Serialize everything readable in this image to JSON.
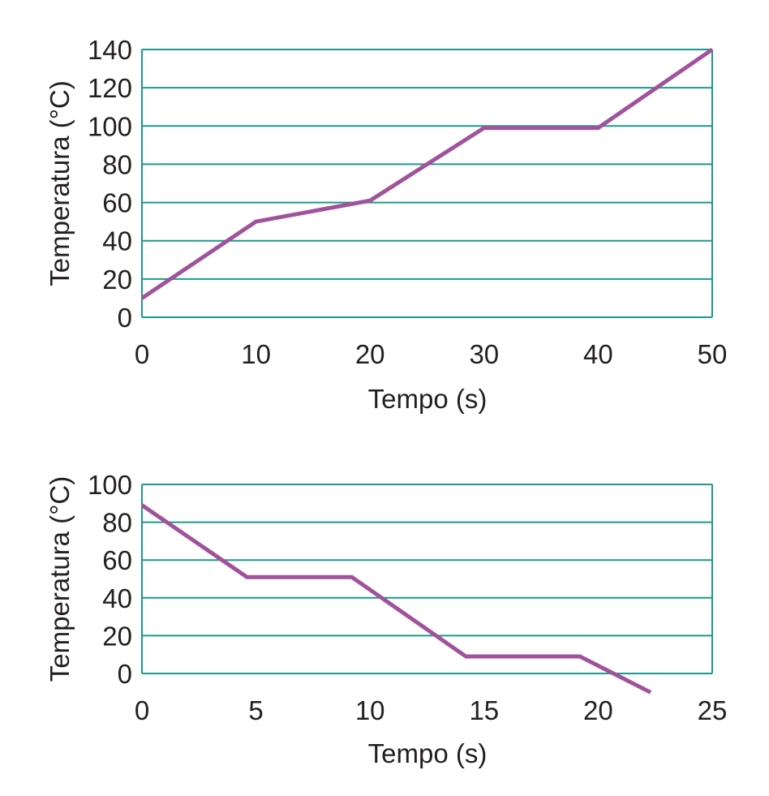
{
  "chart_data": [
    {
      "type": "line",
      "xlabel": "Tempo (s)",
      "ylabel": "Temperatura (°C)",
      "xlim": [
        0,
        50
      ],
      "ylim": [
        0,
        140
      ],
      "xticks": [
        0,
        10,
        20,
        30,
        40,
        50
      ],
      "yticks": [
        0,
        20,
        40,
        60,
        80,
        100,
        120,
        140
      ],
      "grid": "horizontal",
      "series": [
        {
          "x": [
            0,
            10,
            20,
            30,
            40,
            50
          ],
          "y": [
            10,
            50,
            61,
            99,
            99,
            140
          ]
        }
      ]
    },
    {
      "type": "line",
      "xlabel": "Tempo (s)",
      "ylabel": "Temperatura (°C)",
      "xlim": [
        0,
        25
      ],
      "ylim": [
        0,
        100
      ],
      "xticks": [
        0,
        5,
        10,
        15,
        20,
        25
      ],
      "yticks": [
        0,
        20,
        40,
        60,
        80,
        100
      ],
      "grid": "horizontal",
      "series": [
        {
          "x": [
            0,
            4.6,
            9.2,
            14.2,
            19.2,
            22.3
          ],
          "y": [
            89,
            51,
            51,
            9,
            9,
            -10
          ]
        }
      ]
    }
  ],
  "colors": {
    "grid": "#1a9b8c",
    "line": "#a0529b",
    "text": "#231f20"
  }
}
